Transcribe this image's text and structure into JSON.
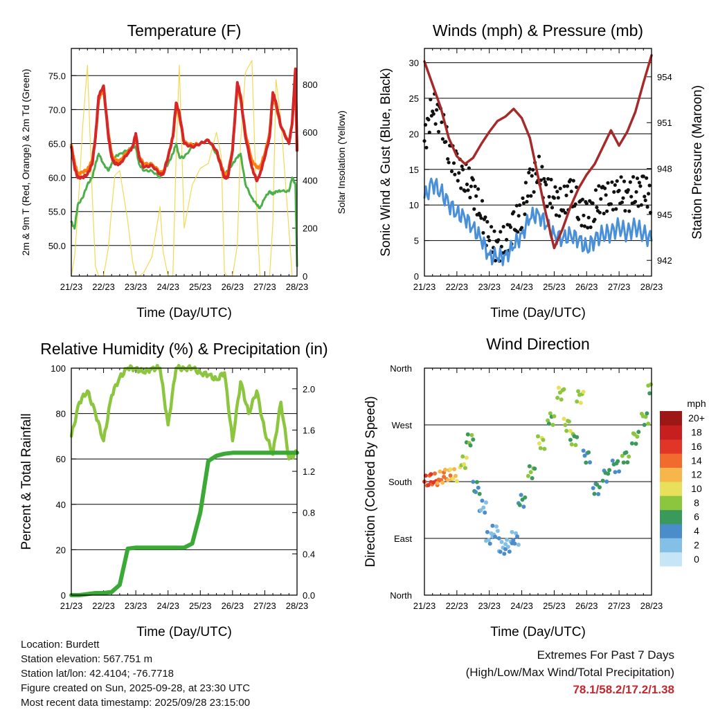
{
  "chart_data": [
    {
      "type": "line",
      "title": "Temperature (F)",
      "xlabel": "Time (Day/UTC)",
      "ylabel": "2m & 9m T (Red, Orange) & 2m Td (Green)",
      "y2label": "Solar Insolation (Yellow)",
      "x_ticks": [
        "21/23",
        "22/23",
        "23/23",
        "24/23",
        "25/23",
        "26/23",
        "27/23",
        "28/23"
      ],
      "ylim": [
        45.5,
        79
      ],
      "y_ticks": [
        "50.0",
        "55.0",
        "60.0",
        "65.0",
        "70.0",
        "75.0"
      ],
      "y2lim": [
        0,
        950
      ],
      "y2_ticks": [
        "0",
        "200",
        "400",
        "600",
        "800"
      ],
      "x": [
        0,
        0.1,
        0.2,
        0.35,
        0.5,
        0.65,
        0.75,
        0.85,
        1.0,
        1.15,
        1.25,
        1.35,
        1.5,
        1.75,
        1.9,
        2.0,
        2.1,
        2.25,
        2.5,
        2.75,
        2.85,
        3.0,
        3.15,
        3.25,
        3.35,
        3.5,
        3.75,
        4.0,
        4.25,
        4.5,
        4.65,
        4.75,
        4.85,
        5.0,
        5.15,
        5.25,
        5.4,
        5.6,
        5.75,
        5.85,
        6.0,
        6.15,
        6.25,
        6.35,
        6.5,
        6.75,
        6.85,
        6.95,
        7.0
      ],
      "series": [
        {
          "name": "2m T",
          "color": "#d62728",
          "values": [
            64.5,
            61.5,
            60,
            60,
            60.5,
            62,
            66,
            72,
            73.5,
            66,
            63,
            62,
            62,
            63.5,
            64.5,
            66.5,
            63,
            61.5,
            61.8,
            60.5,
            60.5,
            63,
            66,
            71,
            69.5,
            65,
            64.5,
            65,
            65.5,
            64,
            61.5,
            60,
            60,
            64,
            74,
            72,
            66,
            61.5,
            59.5,
            60.5,
            63,
            66,
            72.5,
            71,
            67.5,
            65,
            68,
            76,
            64
          ]
        },
        {
          "name": "9m T",
          "color": "#ff7f0e",
          "values": [
            64.8,
            62.2,
            60.5,
            60.8,
            61.2,
            62.5,
            66,
            71.5,
            73,
            66.5,
            63.5,
            62.5,
            62.5,
            63.8,
            64.5,
            66,
            63.2,
            62,
            62,
            60.8,
            60.8,
            63,
            66,
            70.5,
            69,
            65.2,
            64.8,
            65,
            65.5,
            64,
            61.8,
            60.5,
            60.5,
            64.2,
            73.5,
            71.5,
            66.5,
            62.5,
            61.5,
            61.5,
            63.5,
            66.5,
            72,
            70.5,
            67.5,
            65.2,
            68,
            75.5,
            64
          ]
        },
        {
          "name": "2m Td",
          "color": "#4daf4a",
          "values": [
            53.5,
            52.5,
            56,
            57,
            59,
            60,
            62,
            63.5,
            62,
            61,
            62,
            63,
            63.5,
            64,
            64.5,
            64.5,
            62,
            61,
            61,
            60,
            61,
            62,
            63.5,
            65,
            63,
            63,
            64.5,
            65,
            65.5,
            63.5,
            61.5,
            60.5,
            61,
            62,
            63,
            63.5,
            59,
            57,
            56,
            55.5,
            57,
            58,
            57.5,
            58,
            58,
            58,
            60,
            59,
            47
          ]
        },
        {
          "name": "Solar Insolation",
          "color": "#f2d74a",
          "axis": "y2",
          "values": [
            0,
            80,
            260,
            620,
            880,
            330,
            40,
            0,
            0,
            120,
            280,
            420,
            440,
            230,
            60,
            0,
            0,
            15,
            80,
            290,
            100,
            0,
            0,
            500,
            880,
            200,
            380,
            450,
            470,
            600,
            500,
            15,
            0,
            0,
            130,
            560,
            850,
            900,
            280,
            0,
            0,
            0,
            220,
            820,
            650,
            190,
            0,
            0,
            0
          ]
        }
      ]
    },
    {
      "type": "line",
      "title": "Winds (mph) & Pressure (mb)",
      "xlabel": "Time (Day/UTC)",
      "ylabel": "Sonic Wind & Gust (Blue, Black)",
      "y2label": "Station Pressure (Maroon)",
      "x_ticks": [
        "21/23",
        "22/23",
        "23/23",
        "24/23",
        "25/23",
        "26/23",
        "27/23",
        "28/23"
      ],
      "ylim": [
        0,
        32
      ],
      "y_ticks": [
        "0",
        "5",
        "10",
        "15",
        "20",
        "25",
        "30"
      ],
      "y2lim": [
        940.97,
        955.85
      ],
      "y2_ticks": [
        "942",
        "945",
        "948",
        "951",
        "954"
      ],
      "x": [
        0,
        0.25,
        0.5,
        0.75,
        1.0,
        1.25,
        1.5,
        1.75,
        2.0,
        2.25,
        2.5,
        2.75,
        3.0,
        3.25,
        3.5,
        3.75,
        4.0,
        4.25,
        4.5,
        4.75,
        5.0,
        5.25,
        5.5,
        5.75,
        6.0,
        6.25,
        6.5,
        6.75,
        7.0
      ],
      "series": [
        {
          "name": "Sonic Wind",
          "color": "#4a90d9",
          "values": [
            11,
            13,
            12,
            10,
            9,
            8,
            7,
            5,
            3,
            2.5,
            3,
            4,
            6,
            8,
            9,
            7,
            6,
            5,
            6,
            5,
            4,
            5,
            6,
            6,
            7,
            6,
            7,
            6,
            5
          ]
        },
        {
          "name": "Gust",
          "color": "#111111",
          "values": [
            19,
            24,
            22,
            18,
            15,
            14,
            12,
            9,
            5,
            4,
            5,
            7,
            9,
            13,
            15,
            12,
            11,
            10,
            12,
            10,
            8,
            10,
            11,
            11,
            12,
            11,
            12,
            12,
            11
          ]
        },
        {
          "name": "Station Pressure",
          "color": "#a52a2a",
          "axis": "y2",
          "values": [
            955,
            953.5,
            952,
            950,
            948.8,
            948.3,
            948.7,
            949.6,
            950.4,
            951.1,
            951.4,
            951.9,
            951.3,
            950,
            947.5,
            945,
            942.8,
            944,
            945.5,
            946.7,
            947.6,
            948.3,
            949.4,
            950.5,
            949.5,
            950.4,
            951.7,
            953.6,
            955.4
          ]
        }
      ]
    },
    {
      "type": "line",
      "title": "Relative Humidity (%) & Precipitation (in)",
      "xlabel": "Time (Day/UTC)",
      "ylabel": "Percent & Total Rainfall",
      "x_ticks": [
        "21/23",
        "22/23",
        "23/23",
        "24/23",
        "25/23",
        "26/23",
        "27/23",
        "28/23"
      ],
      "ylim": [
        0,
        100
      ],
      "y_ticks": [
        "0",
        "20",
        "40",
        "60",
        "80",
        "100"
      ],
      "y2lim": [
        0.0,
        2.2
      ],
      "y2_ticks": [
        "0.0",
        "0.4",
        "0.8",
        "1.2",
        "1.6",
        "2.0"
      ],
      "x": [
        0,
        0.25,
        0.5,
        0.75,
        1.0,
        1.25,
        1.5,
        1.75,
        2.0,
        2.25,
        2.5,
        2.75,
        3.0,
        3.25,
        3.5,
        3.75,
        4.0,
        4.25,
        4.5,
        4.75,
        5.0,
        5.25,
        5.5,
        5.75,
        6.0,
        6.25,
        6.5,
        6.75,
        7.0
      ],
      "series": [
        {
          "name": "Relative Humidity",
          "color": "#8cc63f",
          "values": [
            70,
            85,
            90,
            80,
            68,
            88,
            96,
            100,
            100,
            98,
            100,
            100,
            75,
            100,
            100,
            100,
            98,
            97,
            95,
            98,
            68,
            94,
            80,
            90,
            72,
            62,
            85,
            60,
            63
          ]
        },
        {
          "name": "Total Precipitation",
          "color": "#3aa935",
          "axis": "y2",
          "values": [
            0,
            0,
            0.01,
            0.02,
            0.02,
            0.03,
            0.1,
            0.45,
            0.46,
            0.46,
            0.46,
            0.46,
            0.46,
            0.46,
            0.46,
            0.5,
            0.8,
            1.3,
            1.35,
            1.37,
            1.38,
            1.38,
            1.38,
            1.38,
            1.38,
            1.38,
            1.38,
            1.38,
            1.38
          ]
        }
      ]
    },
    {
      "type": "scatter",
      "title": "Wind Direction",
      "xlabel": "Time (Day/UTC)",
      "ylabel": "Direction (Colored By Speed)",
      "x_ticks": [
        "21/23",
        "22/23",
        "23/23",
        "24/23",
        "25/23",
        "26/23",
        "27/23",
        "28/23"
      ],
      "y_ticks": [
        "North",
        "East",
        "South",
        "West",
        "North"
      ],
      "ylim": [
        0,
        360
      ],
      "colorbar_title": "mph",
      "colorbar_labels": [
        "0",
        "2",
        "4",
        "6",
        "8",
        "10",
        "12",
        "14",
        "16",
        "18",
        "20+"
      ],
      "colorbar_colors": [
        "#c6e5f5",
        "#84bfe6",
        "#4b8dca",
        "#3a9a5c",
        "#8cc63f",
        "#e8e05a",
        "#f7b64b",
        "#f06b2d",
        "#e03527",
        "#c71e1e",
        "#9e1717"
      ],
      "x": [
        0.1,
        0.3,
        0.5,
        0.7,
        0.9,
        1.2,
        1.4,
        1.6,
        1.8,
        2.0,
        2.2,
        2.4,
        2.6,
        2.8,
        3.0,
        3.3,
        3.6,
        3.9,
        4.2,
        4.4,
        4.6,
        4.8,
        5.0,
        5.3,
        5.6,
        5.9,
        6.2,
        6.5,
        6.8,
        7.0
      ],
      "directions": [
        180,
        183,
        186,
        189,
        190,
        210,
        245,
        170,
        140,
        90,
        100,
        75,
        78,
        90,
        150,
        195,
        242,
        280,
        320,
        270,
        248,
        315,
        220,
        170,
        190,
        205,
        220,
        250,
        280,
        330
      ],
      "speeds": [
        15,
        14,
        13,
        12,
        11,
        8,
        6,
        4,
        3,
        2,
        2,
        2,
        2,
        3,
        4,
        7,
        8,
        7,
        8,
        8,
        7,
        8,
        4,
        5,
        5,
        5,
        6,
        7,
        7,
        7
      ]
    }
  ],
  "footer": {
    "location": "Location: Burdett",
    "elevation": "Station elevation: 567.751 m",
    "latlon": "Station lat/lon: 42.4104; -76.7718",
    "created": "Figure created on Sun, 2025-09-28, at 23:30 UTC",
    "recent": "Most recent data timestamp: 2025/09/28 23:15:00",
    "extremes_title": "Extremes For Past 7 Days",
    "extremes_subtitle": "(High/Low/Max Wind/Total Precipitation)",
    "extremes_values": "78.1/58.2/17.2/1.38"
  }
}
